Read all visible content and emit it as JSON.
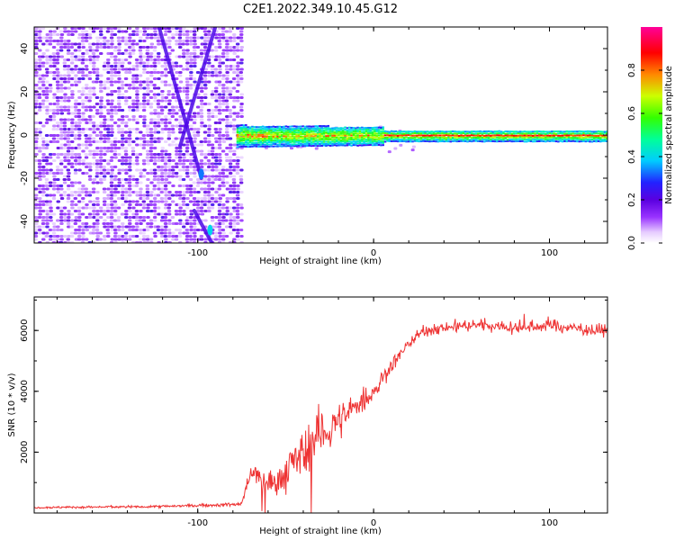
{
  "figure_title": "C2E1.2022.349.10.45.G12",
  "chart_data": [
    {
      "type": "heatmap",
      "title": "C2E1.2022.349.10.45.G12",
      "xlabel": "Height of straight line (km)",
      "ylabel": "Frequency (Hz)",
      "xlim": [
        -193,
        133
      ],
      "ylim": [
        -50,
        50
      ],
      "x_ticks": [
        -100,
        0,
        100
      ],
      "y_ticks": [
        -40,
        -20,
        0,
        20,
        40
      ],
      "colorbar": {
        "label": "Normalized spectral amplitude",
        "range": [
          0,
          1
        ],
        "ticks": [
          "0.0",
          "0.2",
          "0.4",
          "0.6",
          "0.8"
        ],
        "colormap": [
          "#ffffff",
          "#e6ccff",
          "#9933ff",
          "#5a00e0",
          "#2222ff",
          "#00ccff",
          "#00ff66",
          "#ccff00",
          "#ff8800",
          "#ff0000",
          "#ff0066",
          "#ff0099"
        ]
      },
      "features": {
        "noise_region_x": [
          -193,
          -78
        ],
        "carrier_frequency_hz": 0,
        "carrier_start_x": -78,
        "carrier_end_x": 133,
        "peak_amplitude": 0.9,
        "streaks": [
          {
            "x_top": -122,
            "y_top": 50,
            "x_bottom": -98,
            "y_bottom": -20
          },
          {
            "x_top": -90,
            "y_top": 50,
            "x_bottom": -110,
            "y_bottom": -5
          },
          {
            "x_top": -102,
            "y_top": -35,
            "x_bottom": -92,
            "y_bottom": -50
          }
        ]
      }
    },
    {
      "type": "line",
      "xlabel": "Height of straight line (km)",
      "ylabel": "SNR (10 * v/v)",
      "xlim": [
        -193,
        133
      ],
      "ylim": [
        0,
        7100
      ],
      "x_ticks": [
        -100,
        0,
        100
      ],
      "y_ticks": [
        2000,
        4000,
        6000
      ],
      "line_color": "#ee3333",
      "series": [
        {
          "x": [
            -193,
            -170,
            -150,
            -130,
            -110,
            -90,
            -75,
            -72,
            -68,
            -64,
            -60,
            -56,
            -52,
            -48,
            -44,
            -40,
            -36,
            -32,
            -28,
            -24,
            -20,
            -16,
            -12,
            -8,
            -4,
            0,
            4,
            8,
            12,
            16,
            20,
            24,
            28,
            32,
            36,
            40,
            50,
            60,
            70,
            80,
            90,
            100,
            110,
            120,
            133
          ],
          "values": [
            180,
            190,
            200,
            210,
            230,
            260,
            300,
            900,
            1400,
            1100,
            1050,
            900,
            1200,
            1500,
            1700,
            1900,
            2300,
            2500,
            2700,
            2900,
            3000,
            3200,
            3400,
            3600,
            3800,
            4000,
            4300,
            4700,
            5000,
            5300,
            5600,
            5800,
            5950,
            6000,
            6050,
            6100,
            6150,
            6200,
            6150,
            6100,
            6100,
            6200,
            6100,
            6050,
            6000
          ],
          "noise": [
            60,
            70,
            70,
            80,
            90,
            100,
            150,
            600,
            700,
            800,
            900,
            1000,
            1100,
            1200,
            1300,
            1500,
            1700,
            1800,
            1500,
            1300,
            1100,
            1000,
            900,
            850,
            800,
            700,
            600,
            500,
            450,
            400,
            400,
            350,
            350,
            350,
            350,
            350,
            400,
            400,
            400,
            400,
            450,
            500,
            450,
            400,
            350
          ]
        }
      ]
    }
  ]
}
